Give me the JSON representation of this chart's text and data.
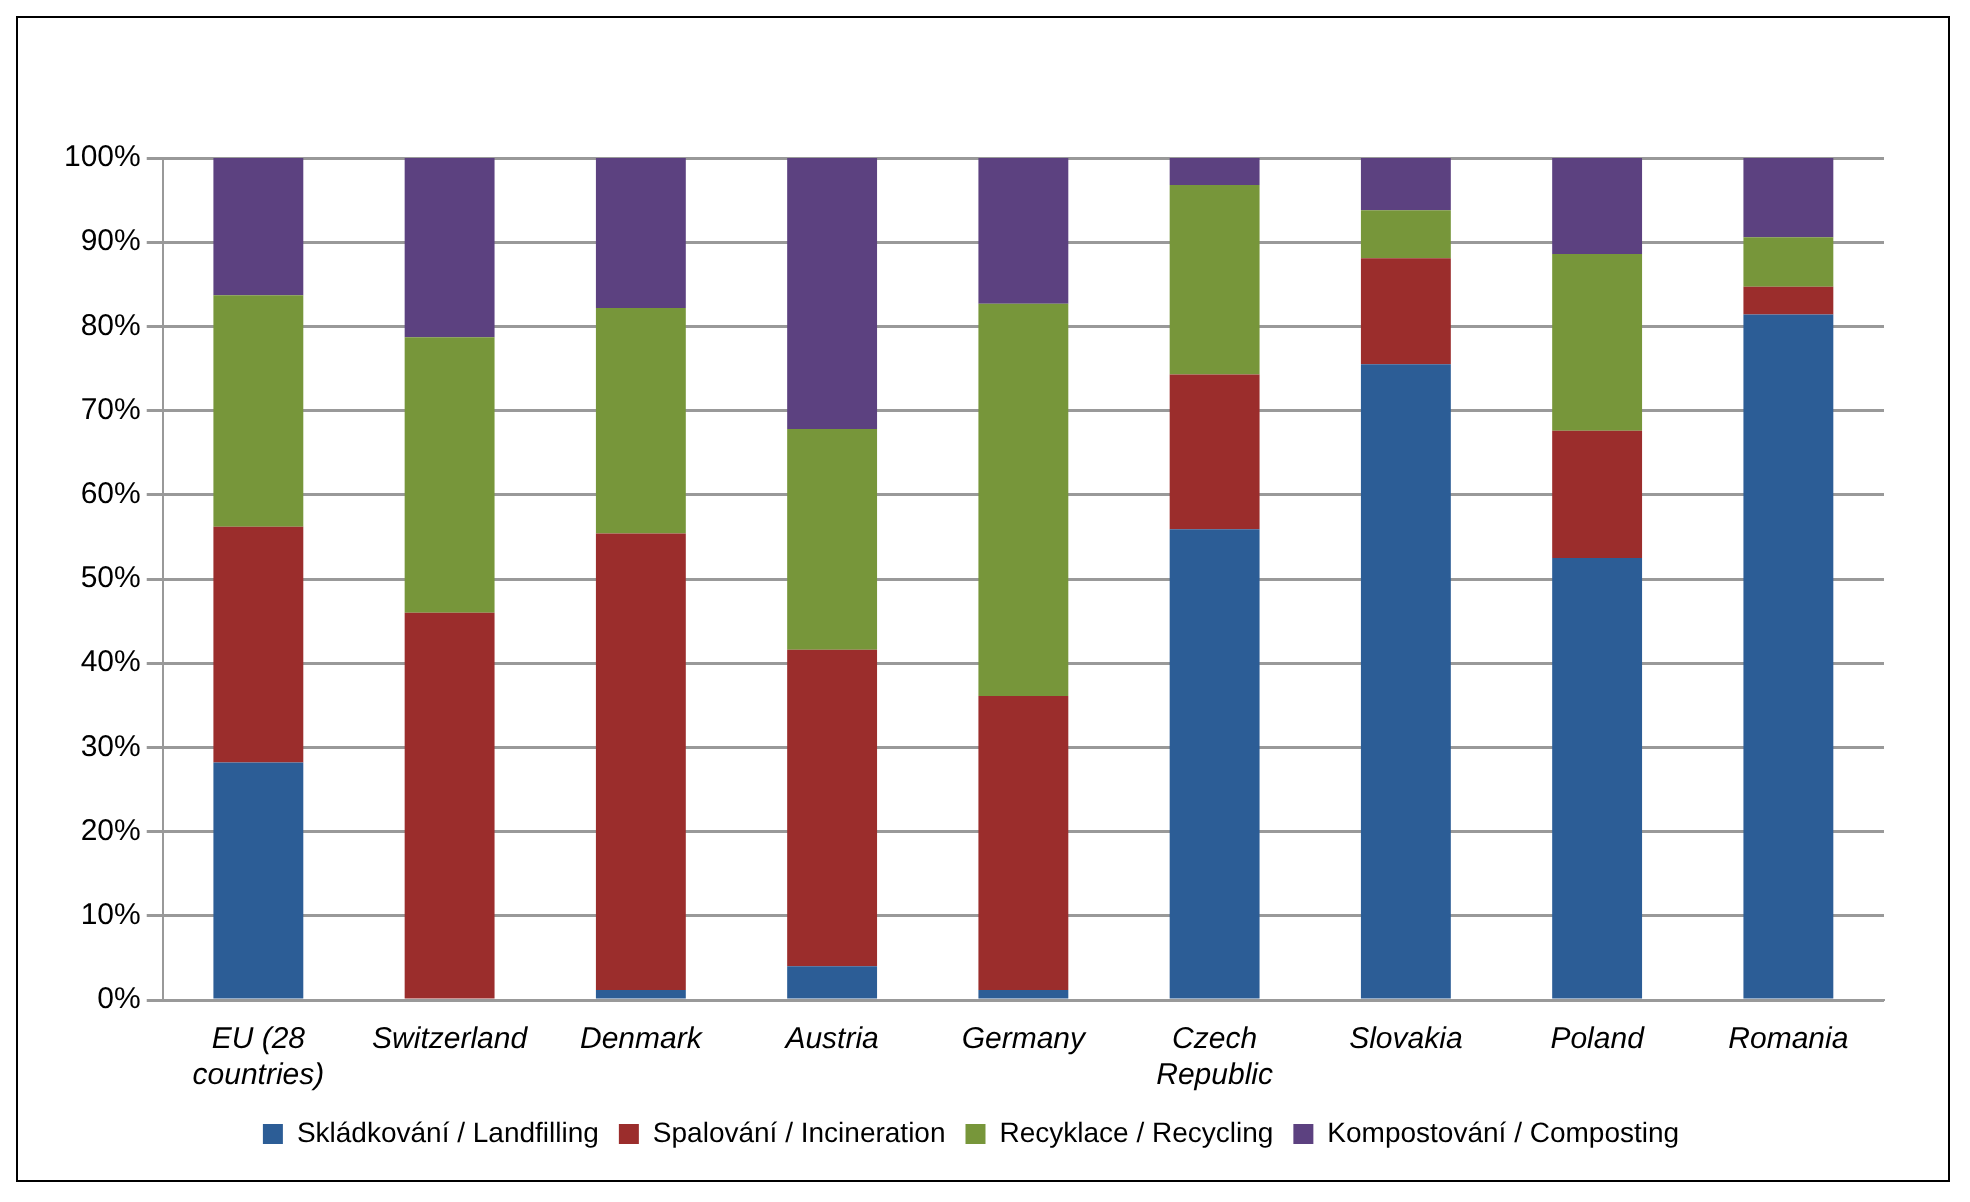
{
  "chart_data": {
    "type": "bar",
    "stacked": true,
    "categories": [
      "EU (28 countries)",
      "Switzerland",
      "Denmark",
      "Austria",
      "Germany",
      "Czech Republic",
      "Slovakia",
      "Poland",
      "Romania"
    ],
    "series": [
      {
        "name": "Skládkování / Landfilling",
        "color": "#2c5d96",
        "values": [
          28.2,
          0,
          1.2,
          4,
          1.2,
          55.9,
          75.5,
          52.5,
          81.4
        ]
      },
      {
        "name": "Spalování / Incineration",
        "color": "#9b2d2c",
        "values": [
          28,
          46,
          54.2,
          37.6,
          34.9,
          18.4,
          12.6,
          15.1,
          3.3
        ]
      },
      {
        "name": "Recyklace / Recycling",
        "color": "#77963a",
        "values": [
          27.5,
          32.7,
          26.8,
          26.2,
          46.6,
          22.5,
          5.7,
          21,
          5.9
        ]
      },
      {
        "name": "Kompostování / Composting",
        "color": "#5c4180",
        "values": [
          16.3,
          21.3,
          17.8,
          32.2,
          17.3,
          3.2,
          6.2,
          11.4,
          9.4
        ]
      }
    ],
    "ylim": [
      0,
      100
    ],
    "yticks": [
      {
        "value": 0,
        "label": "0%"
      },
      {
        "value": 10,
        "label": "10%"
      },
      {
        "value": 20,
        "label": "20%"
      },
      {
        "value": 30,
        "label": "30%"
      },
      {
        "value": 40,
        "label": "40%"
      },
      {
        "value": 50,
        "label": "50%"
      },
      {
        "value": 60,
        "label": "60%"
      },
      {
        "value": 70,
        "label": "70%"
      },
      {
        "value": 80,
        "label": "80%"
      },
      {
        "value": 90,
        "label": "90%"
      },
      {
        "value": 100,
        "label": "100%"
      }
    ],
    "grid": "y",
    "legend": "bottom"
  }
}
